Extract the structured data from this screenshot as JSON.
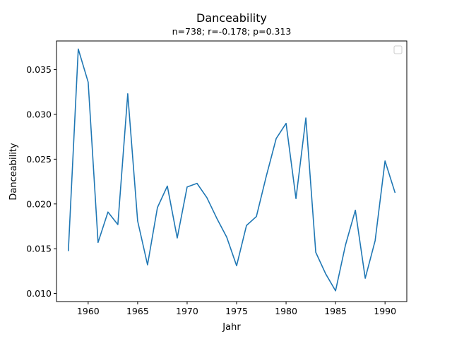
{
  "chart_data": {
    "type": "line",
    "title": "Danceability",
    "subtitle": "n=738; r=-0.178; p=0.313",
    "xlabel": "Jahr",
    "ylabel": "Danceability",
    "xlim": [
      1956.8,
      1992.2
    ],
    "ylim": [
      0.0091,
      0.0382
    ],
    "xticks": [
      1960,
      1965,
      1970,
      1975,
      1980,
      1985,
      1990
    ],
    "xtick_labels": [
      "1960",
      "1965",
      "1970",
      "1975",
      "1980",
      "1985",
      "1990"
    ],
    "yticks": [
      0.01,
      0.015,
      0.02,
      0.025,
      0.03,
      0.035
    ],
    "ytick_labels": [
      "0.010",
      "0.015",
      "0.020",
      "0.025",
      "0.030",
      "0.035"
    ],
    "grid": false,
    "legend": "top-right",
    "series": [
      {
        "color": "#1f77b4",
        "x": [
          1958,
          1959,
          1960,
          1961,
          1962,
          1963,
          1964,
          1965,
          1966,
          1967,
          1968,
          1969,
          1970,
          1971,
          1972,
          1973,
          1974,
          1975,
          1976,
          1977,
          1978,
          1979,
          1980,
          1981,
          1982,
          1983,
          1984,
          1985,
          1986,
          1987,
          1988,
          1989,
          1990,
          1991
        ],
        "y": [
          0.0148,
          0.0373,
          0.0336,
          0.0157,
          0.0191,
          0.0177,
          0.0323,
          0.0181,
          0.0132,
          0.0196,
          0.022,
          0.0162,
          0.0219,
          0.0223,
          0.0207,
          0.0184,
          0.0163,
          0.0131,
          0.0176,
          0.0186,
          0.0231,
          0.0273,
          0.029,
          0.0206,
          0.0296,
          0.0146,
          0.0122,
          0.0103,
          0.0154,
          0.0193,
          0.0117,
          0.0159,
          0.0248,
          0.0213
        ]
      }
    ]
  }
}
